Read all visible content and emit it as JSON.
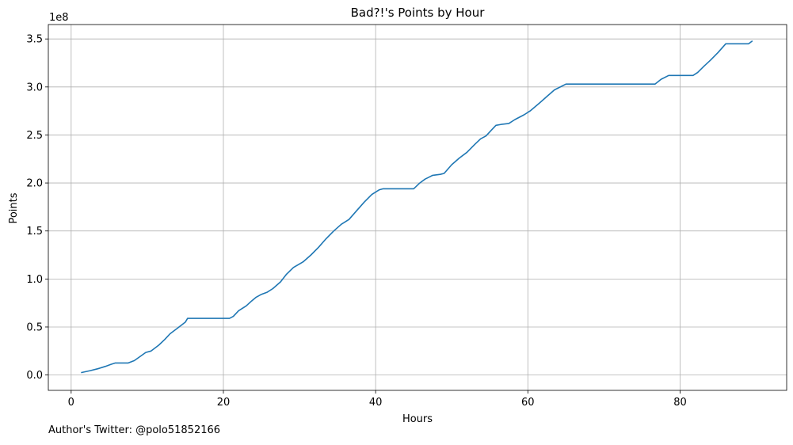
{
  "chart_data": {
    "type": "line",
    "title": "Bad?!'s Points by Hour",
    "xlabel": "Hours",
    "ylabel": "Points",
    "y_offset_text": "1e8",
    "xlim": [
      -3,
      94
    ],
    "ylim": [
      -0.16,
      3.65
    ],
    "x_ticks": [
      0,
      20,
      40,
      60,
      80
    ],
    "x_tick_labels": [
      "0",
      "20",
      "40",
      "60",
      "80"
    ],
    "y_ticks": [
      0.0,
      0.5,
      1.0,
      1.5,
      2.0,
      2.5,
      3.0,
      3.5
    ],
    "y_tick_labels": [
      "0.0",
      "0.5",
      "1.0",
      "1.5",
      "2.0",
      "2.5",
      "3.0",
      "3.5"
    ],
    "grid": true,
    "line_color": "#1f77b4",
    "grid_color": "#b0b0b0",
    "series": [
      {
        "x": [
          1.3,
          2.5,
          3.5,
          4.5,
          5.2,
          5.8,
          6.5,
          7.5,
          8.3,
          9.0,
          9.8,
          10.5,
          11.5,
          12.3,
          13.0,
          14.0,
          15.0,
          15.3,
          20.8,
          21.3,
          22.0,
          23.0,
          23.7,
          24.3,
          25.0,
          25.7,
          26.5,
          27.5,
          28.3,
          29.2,
          30.5,
          31.5,
          32.5,
          33.5,
          34.5,
          35.5,
          36.5,
          37.5,
          38.5,
          39.5,
          40.5,
          41.0,
          45.0,
          45.8,
          46.5,
          47.0,
          47.5,
          48.5,
          49.0,
          50.0,
          51.0,
          52.0,
          53.0,
          53.8,
          54.5,
          55.2,
          55.8,
          56.5,
          57.5,
          58.3,
          59.5,
          60.3,
          61.5,
          62.5,
          63.5,
          64.5,
          65.0,
          76.7,
          77.5,
          78.5,
          81.7,
          82.3,
          83.2,
          84.0,
          85.0,
          86.0,
          89.0,
          89.5
        ],
        "y": [
          0.025,
          0.045,
          0.065,
          0.09,
          0.11,
          0.125,
          0.125,
          0.125,
          0.15,
          0.19,
          0.235,
          0.25,
          0.31,
          0.37,
          0.43,
          0.49,
          0.55,
          0.59,
          0.59,
          0.61,
          0.67,
          0.72,
          0.77,
          0.81,
          0.84,
          0.86,
          0.9,
          0.97,
          1.05,
          1.12,
          1.18,
          1.25,
          1.33,
          1.42,
          1.5,
          1.57,
          1.62,
          1.71,
          1.8,
          1.88,
          1.93,
          1.94,
          1.94,
          2.0,
          2.04,
          2.06,
          2.08,
          2.09,
          2.1,
          2.19,
          2.26,
          2.32,
          2.4,
          2.46,
          2.49,
          2.55,
          2.6,
          2.61,
          2.62,
          2.66,
          2.71,
          2.75,
          2.83,
          2.9,
          2.97,
          3.01,
          3.03,
          3.03,
          3.08,
          3.12,
          3.12,
          3.15,
          3.22,
          3.28,
          3.36,
          3.45,
          3.45,
          3.48
        ]
      }
    ]
  },
  "footer_text": "Author's Twitter: @polo51852166"
}
